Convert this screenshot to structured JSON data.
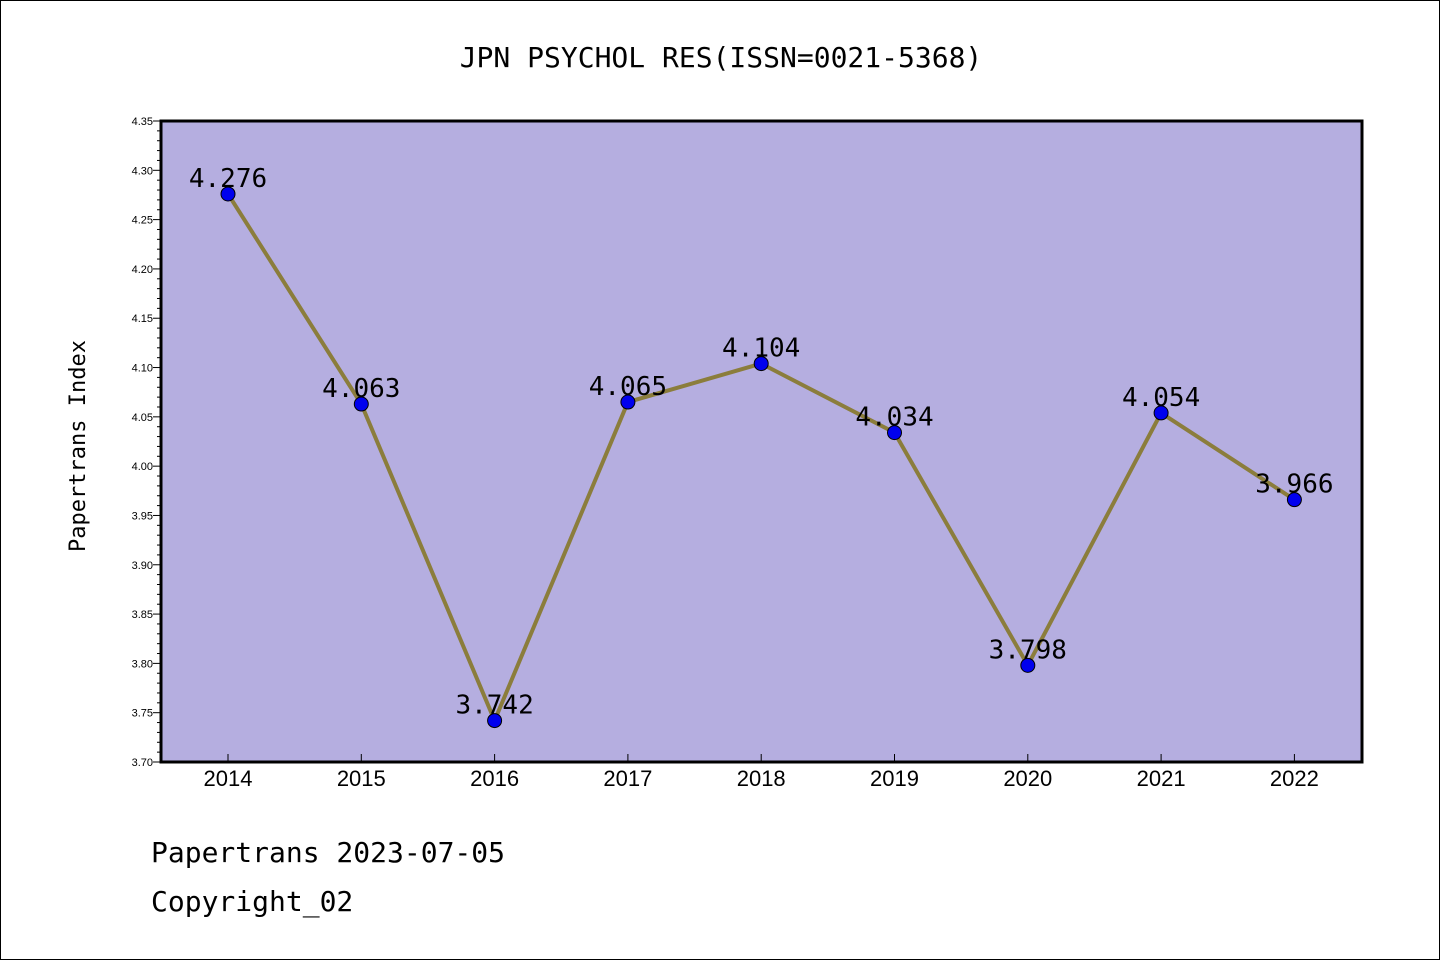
{
  "chart_data": {
    "type": "line",
    "title": "JPN PSYCHOL RES(ISSN=0021-5368)",
    "xlabel": "",
    "ylabel": "Papertrans Index",
    "x": [
      "2014",
      "2015",
      "2016",
      "2017",
      "2018",
      "2019",
      "2020",
      "2021",
      "2022"
    ],
    "values": [
      4.276,
      4.063,
      3.742,
      4.065,
      4.104,
      4.034,
      3.798,
      4.054,
      3.966
    ],
    "data_labels": [
      "4.276",
      "4.063",
      "3.742",
      "4.065",
      "4.104",
      "4.034",
      "3.798",
      "4.054",
      "3.966"
    ],
    "ylim": [
      3.7,
      4.35
    ],
    "yticks": [
      "3.70",
      "3.75",
      "3.80",
      "3.85",
      "3.90",
      "3.95",
      "4.00",
      "4.05",
      "4.10",
      "4.15",
      "4.20",
      "4.25",
      "4.30",
      "4.35"
    ],
    "grid": false,
    "colors": {
      "plot_background": "#b5aee0",
      "line": "#8b7d3c",
      "marker": "#0000ee"
    }
  },
  "footer": {
    "line1": "Papertrans 2023-07-05",
    "line2": "Copyright_02"
  }
}
